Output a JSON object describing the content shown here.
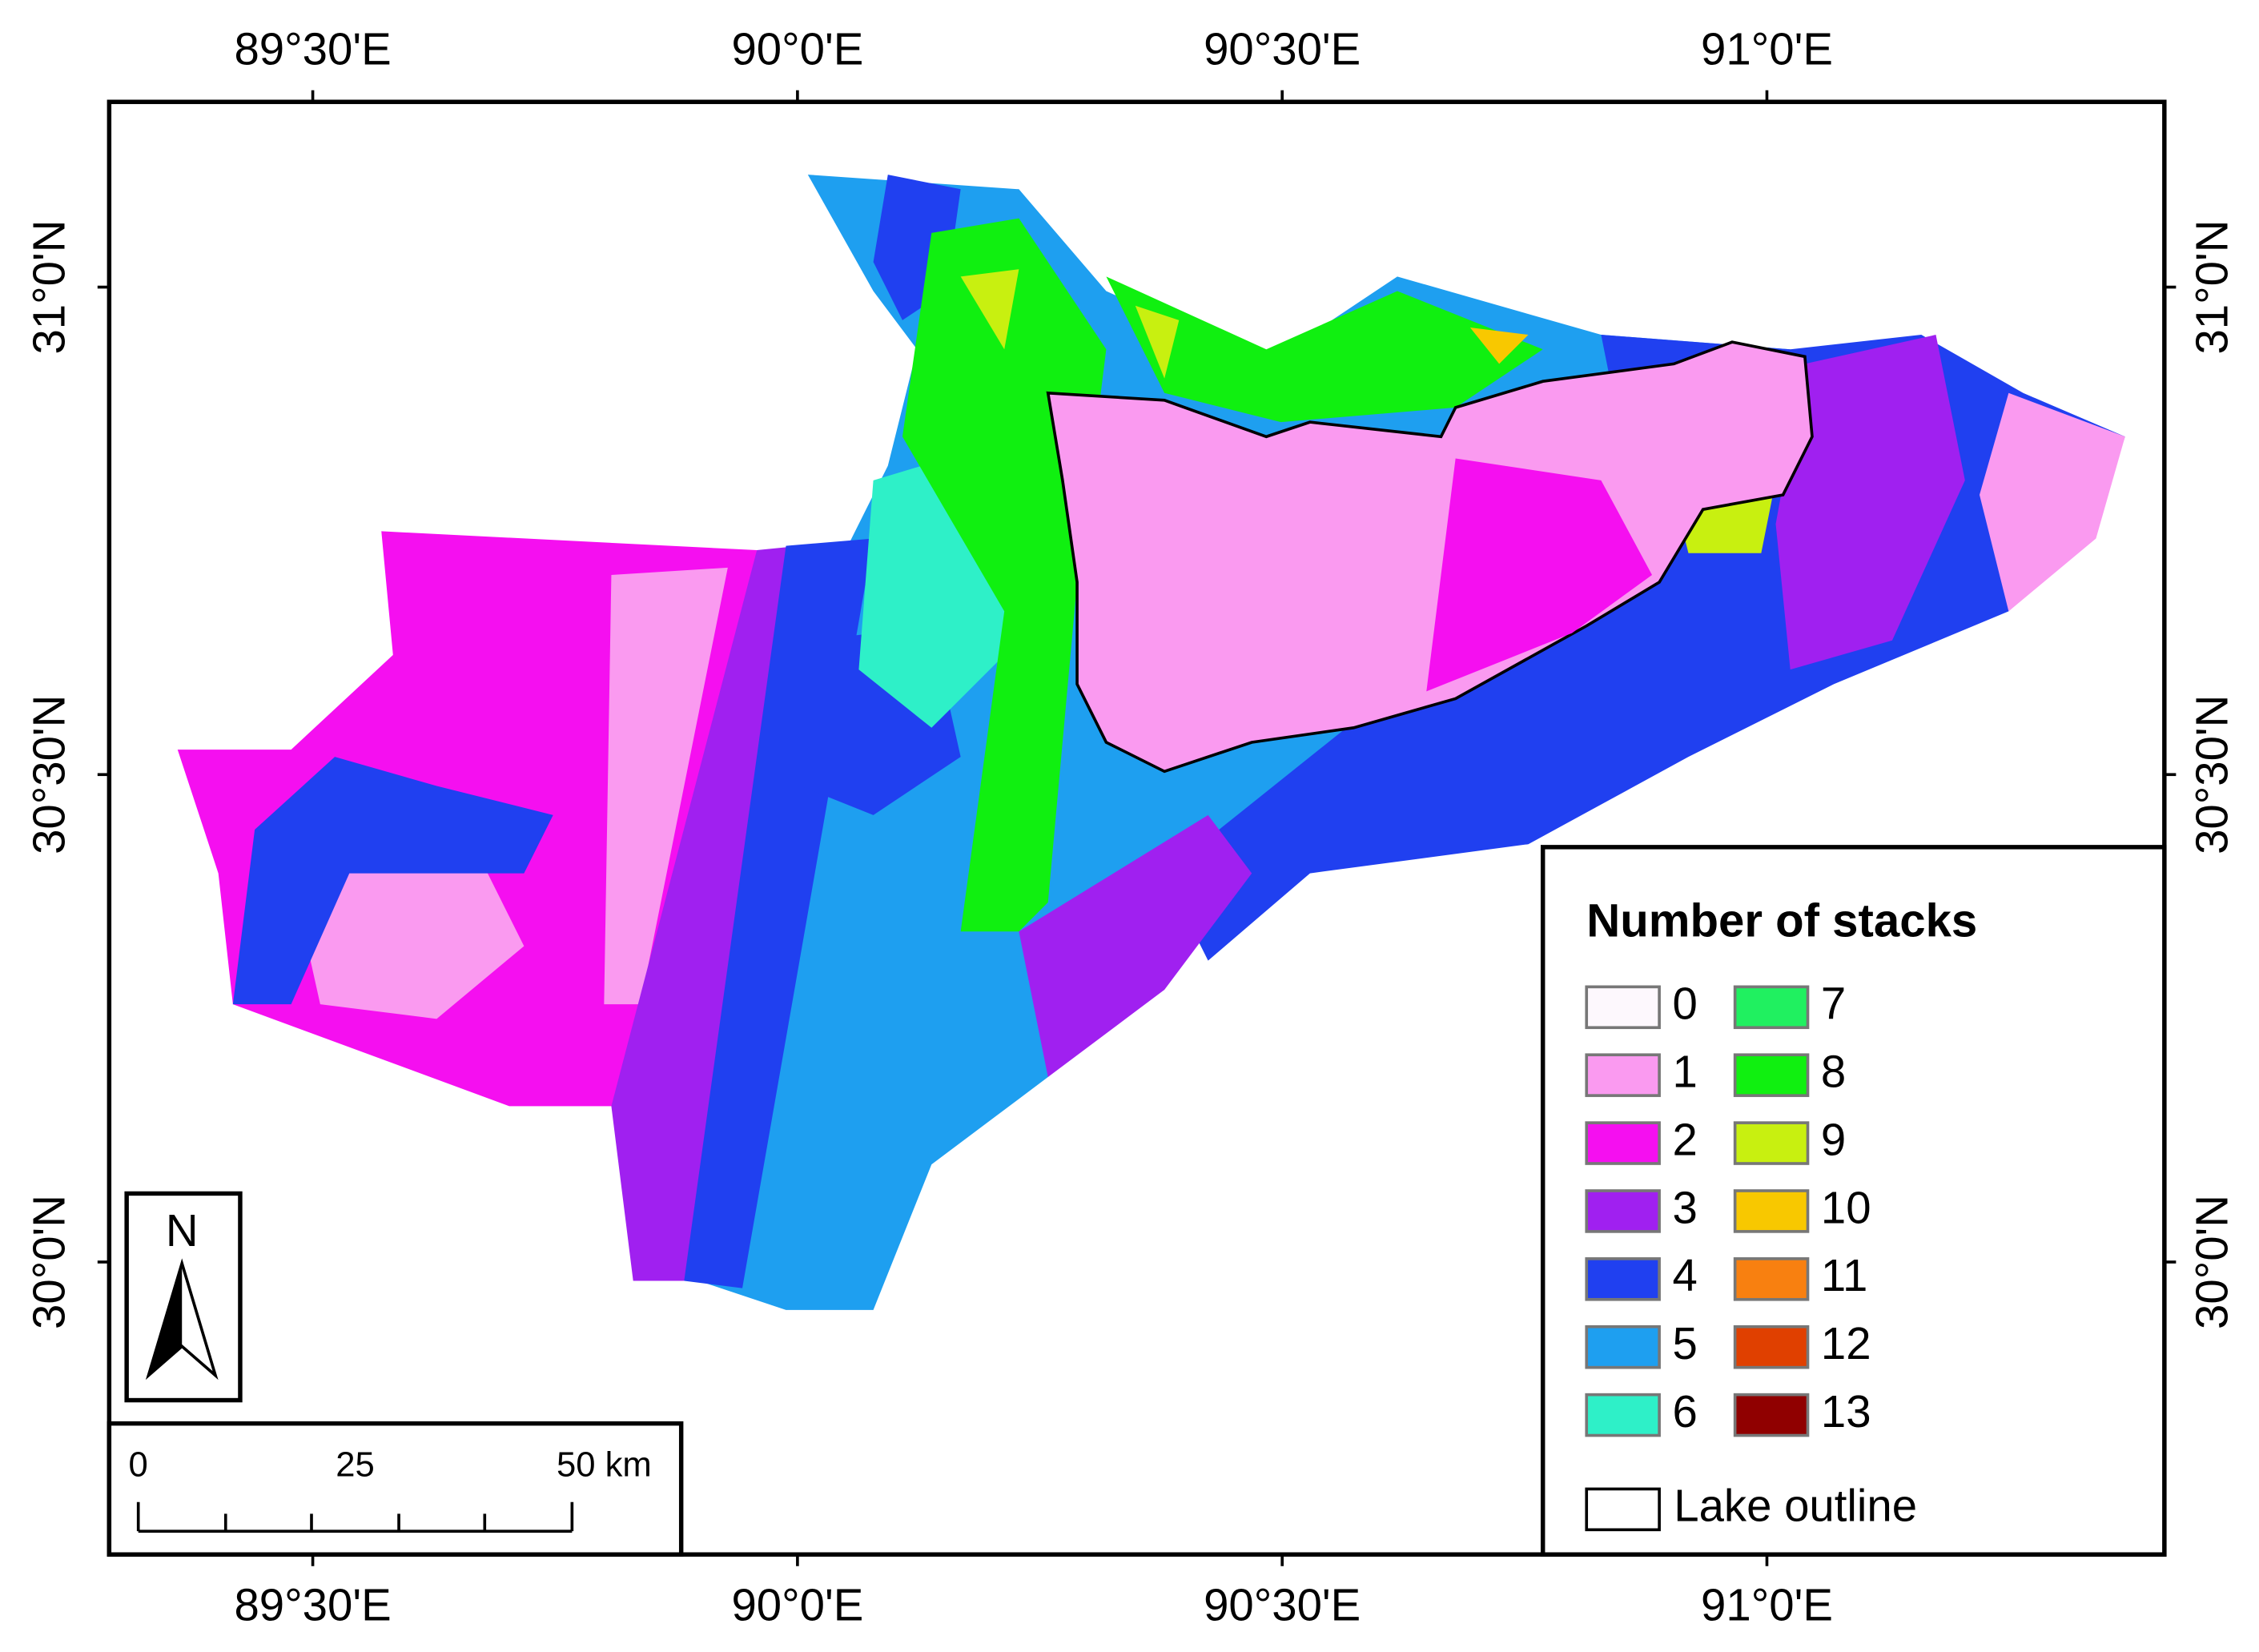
{
  "map": {
    "x_axis": {
      "xlim": [
        89.29,
        91.41
      ],
      "ticks": [
        {
          "value": 89.5,
          "label": "89°30'E"
        },
        {
          "value": 90,
          "label": "90°0'E"
        },
        {
          "value": 90.5,
          "label": "90°30'E"
        },
        {
          "value": 91,
          "label": "91°0'E"
        }
      ]
    },
    "y_axis": {
      "ylim": [
        29.7,
        31.19
      ],
      "ticks": [
        {
          "value": 30,
          "label": "30°0'N"
        },
        {
          "value": 30.5,
          "label": "30°30'N"
        },
        {
          "value": 31,
          "label": "31°0'N"
        }
      ]
    },
    "legend": {
      "title": "Number of stacks",
      "items": [
        {
          "label": "0",
          "color": "#fdf8fd"
        },
        {
          "label": "1",
          "color": "#fa9af0"
        },
        {
          "label": "2",
          "color": "#f50ff0"
        },
        {
          "label": "3",
          "color": "#a020f0"
        },
        {
          "label": "4",
          "color": "#2040f0"
        },
        {
          "label": "5",
          "color": "#1e9ff0"
        },
        {
          "label": "6",
          "color": "#2ef0c8"
        },
        {
          "label": "7",
          "color": "#20f060"
        },
        {
          "label": "8",
          "color": "#10f010"
        },
        {
          "label": "9",
          "color": "#c8f010"
        },
        {
          "label": "10",
          "color": "#f8c800"
        },
        {
          "label": "11",
          "color": "#f88010"
        },
        {
          "label": "12",
          "color": "#e04000"
        },
        {
          "label": "13",
          "color": "#900000"
        }
      ],
      "outline_label": "Lake outline"
    },
    "north_arrow": "N",
    "scale_bar": [
      "0",
      "25",
      "50 km"
    ]
  }
}
